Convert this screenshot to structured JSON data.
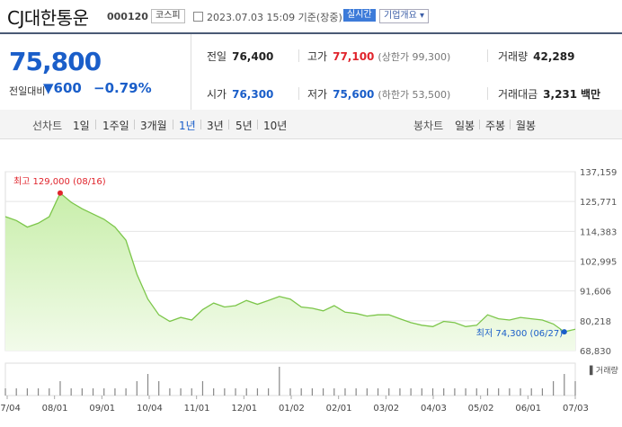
{
  "header": {
    "name": "CJ대한통운",
    "code": "000120",
    "market": "코스피",
    "datetime": "2023.07.03 15:09 기준(장중)",
    "realtime": "실시간",
    "company_info": "기업개요 ▾"
  },
  "quote": {
    "price": "75,800",
    "change_label": "전일대비",
    "change": "▼600",
    "change_pct": "−0.79%",
    "prev_close": {
      "label": "전일",
      "value": "76,400"
    },
    "high": {
      "label": "고가",
      "value": "77,100",
      "sub": "(상한가 99,300)"
    },
    "volume": {
      "label": "거래량",
      "value": "42,289"
    },
    "open": {
      "label": "시가",
      "value": "76,300"
    },
    "low": {
      "label": "저가",
      "value": "75,600",
      "sub": "(하한가 53,500)"
    },
    "amount": {
      "label": "거래대금",
      "value": "3,231",
      "unit": "백만"
    }
  },
  "tabs": {
    "line_label": "선차트",
    "line_periods": [
      "1일",
      "1주일",
      "3개월",
      "1년",
      "3년",
      "5년",
      "10년"
    ],
    "active": "1년",
    "candle_label": "봉차트",
    "candle_periods": [
      "일봉",
      "주봉",
      "월봉"
    ]
  },
  "colors": {
    "up": "#e0242c",
    "down": "#1a5ec9",
    "line": "#7cc64a"
  },
  "chart_data": {
    "type": "area",
    "x_ticks": [
      "07/04",
      "08/01",
      "09/01",
      "10/04",
      "11/01",
      "12/01",
      "01/02",
      "02/01",
      "03/02",
      "04/03",
      "05/02",
      "06/01",
      "07/03"
    ],
    "y_ticks": [
      "137,159",
      "125,771",
      "114,383",
      "102,995",
      "91,606",
      "80,218",
      "68,830"
    ],
    "ylim": [
      68830,
      137159
    ],
    "max_label": "최고 129,000 (08/16)",
    "min_label": "최저 74,300 (06/27)",
    "volume_label": "거래량",
    "x": [
      0,
      5,
      10,
      15,
      20,
      25,
      30,
      35,
      40,
      45,
      50,
      55,
      60,
      65,
      70,
      75,
      80,
      85,
      90,
      95,
      100,
      105,
      110,
      115,
      120,
      125,
      130,
      135,
      140,
      145,
      150,
      155,
      160,
      165,
      170,
      175,
      180,
      185,
      190,
      195,
      200,
      205,
      210,
      215,
      220,
      225,
      230,
      235,
      240,
      245,
      250,
      255,
      260
    ],
    "values": [
      120000,
      118500,
      116000,
      117500,
      120000,
      129000,
      125500,
      123000,
      121000,
      119000,
      116000,
      111000,
      98000,
      88500,
      82500,
      80000,
      81500,
      80500,
      84500,
      87000,
      85500,
      86000,
      88000,
      86500,
      88000,
      89500,
      88500,
      85500,
      85000,
      84000,
      86000,
      83500,
      83000,
      82000,
      82500,
      82500,
      81000,
      79500,
      78500,
      78000,
      80000,
      79500,
      78000,
      78500,
      82500,
      81000,
      80500,
      81500,
      81000,
      80500,
      79000,
      76000,
      77000
    ],
    "volumes": [
      1,
      1,
      1,
      1,
      1,
      2,
      1,
      1,
      1,
      1,
      1,
      1,
      2,
      3,
      2,
      1,
      1,
      1,
      2,
      1,
      1,
      1,
      1,
      1,
      1,
      4,
      1,
      1,
      1,
      1,
      1,
      1,
      1,
      1,
      1,
      1,
      1,
      1,
      1,
      1,
      1,
      1,
      1,
      1,
      1,
      1,
      1,
      1,
      1,
      1,
      2,
      3,
      2
    ]
  }
}
